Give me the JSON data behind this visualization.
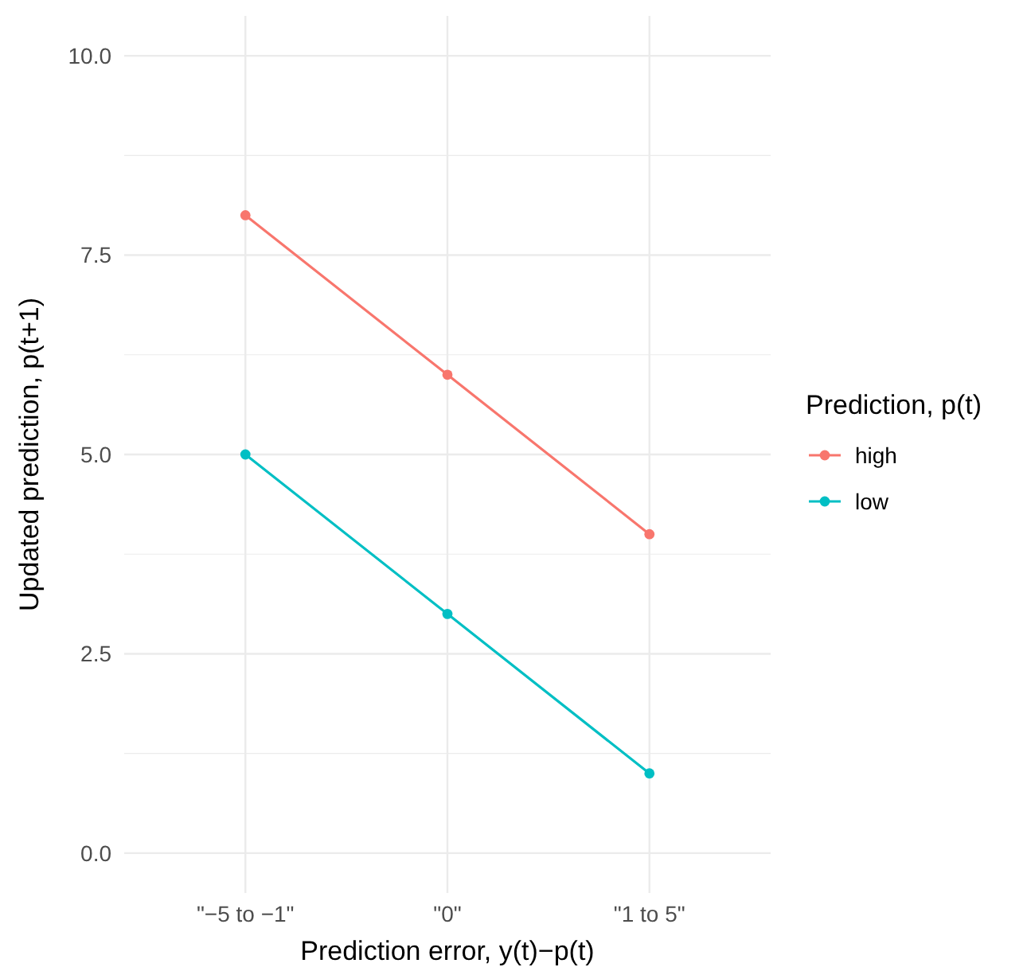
{
  "chart_data": {
    "type": "line",
    "xlabel": "Prediction error, y(t)−p(t)",
    "ylabel": "Updated prediction, p(t+1)",
    "legend_title": "Prediction, p(t)",
    "categories": [
      "\"−5 to −1\"",
      "\"0\"",
      "\"1 to 5\""
    ],
    "series": [
      {
        "name": "high",
        "color": "#f8766d",
        "values": [
          8,
          6,
          4
        ]
      },
      {
        "name": "low",
        "color": "#00bfc4",
        "values": [
          5,
          3,
          1
        ]
      }
    ],
    "ylim": [
      -0.5,
      10.5
    ],
    "yticks": [
      {
        "value": 0,
        "label": "0.0"
      },
      {
        "value": 1.25,
        "label": null
      },
      {
        "value": 2.5,
        "label": "2.5"
      },
      {
        "value": 3.75,
        "label": null
      },
      {
        "value": 5,
        "label": "5.0"
      },
      {
        "value": 6.25,
        "label": null
      },
      {
        "value": 7.5,
        "label": "7.5"
      },
      {
        "value": 8.75,
        "label": null
      },
      {
        "value": 10,
        "label": "10.0"
      }
    ],
    "grid": true,
    "legend": "right",
    "marker": "circle",
    "line_style": "solid"
  }
}
